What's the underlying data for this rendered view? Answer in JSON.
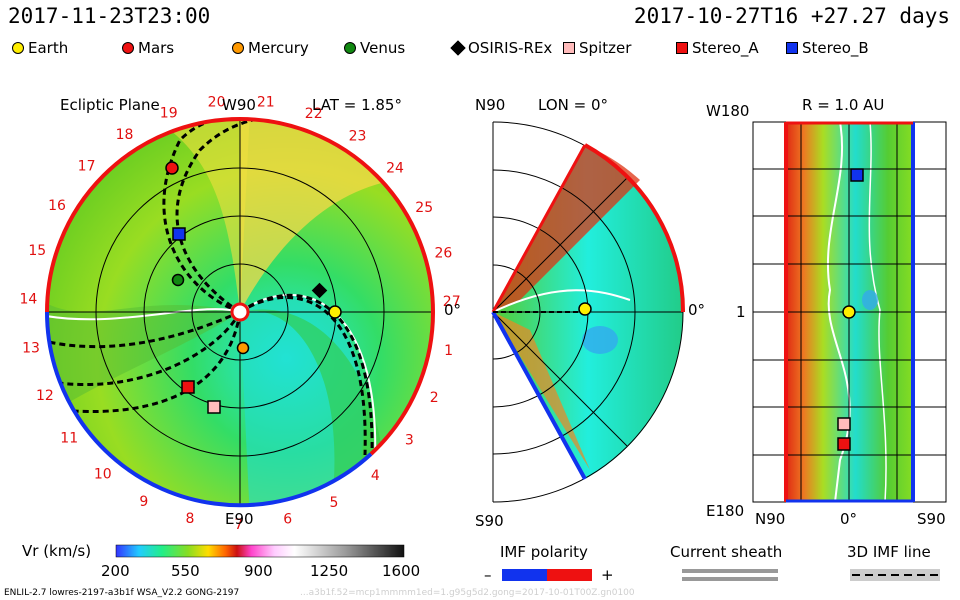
{
  "header": {
    "left_time": "2017-11-23T23:00",
    "right_time": "2017-10-27T16 +27.27 days"
  },
  "legend": [
    {
      "name": "Earth",
      "shape": "circle",
      "color": "#ffee00"
    },
    {
      "name": "Mars",
      "shape": "circle",
      "color": "#ee1111"
    },
    {
      "name": "Mercury",
      "shape": "circle",
      "color": "#ff9900"
    },
    {
      "name": "Venus",
      "shape": "circle",
      "color": "#118811"
    },
    {
      "name": "OSIRIS-REx",
      "shape": "diamond",
      "color": "#000000"
    },
    {
      "name": "Spitzer",
      "shape": "square",
      "color": "#ffbbbb"
    },
    {
      "name": "Stereo_A",
      "shape": "square",
      "color": "#ee1111"
    },
    {
      "name": "Stereo_B",
      "shape": "square",
      "color": "#1133ee"
    }
  ],
  "panels": {
    "ecliptic": {
      "title": "Ecliptic Plane",
      "top_label": "W90",
      "lat": "LAT = 1.85°",
      "bottom_label": "E90",
      "left_label": "14",
      "zero_label": "0°",
      "rotation_numbers": [
        "1",
        "2",
        "3",
        "4",
        "5",
        "6",
        "7",
        "8",
        "9",
        "10",
        "11",
        "12",
        "13",
        "14",
        "15",
        "16",
        "17",
        "18",
        "19",
        "20",
        "21",
        "22",
        "23",
        "24",
        "25",
        "26",
        "27"
      ]
    },
    "meridional": {
      "top_label": "N90",
      "lon": "LON = 0°",
      "bottom_label": "S90",
      "zero_label": "0°"
    },
    "map": {
      "top_left": "W180",
      "r": "R = 1.0 AU",
      "mid_left": "1",
      "bottom_left": "E180",
      "x_labels": [
        "N90",
        "0°",
        "S90"
      ]
    }
  },
  "colorbar": {
    "label": "Vr (km/s)",
    "ticks": [
      "200",
      "550",
      "900",
      "1250",
      "1600"
    ]
  },
  "imf": {
    "title": "IMF polarity",
    "minus": "–",
    "plus": "+"
  },
  "current_sheath": {
    "title": "Current sheath"
  },
  "imf_line": {
    "title": "3D IMF line"
  },
  "footer": {
    "left": "ENLIL-2.7 lowres-2197-a3b1f WSA_V2.2 GONG-2197",
    "right": "...a3b1f.52=mcp1mmmm1ed=1.g95g5d2.gong=2017-10-01T00Z.gn0100"
  }
}
